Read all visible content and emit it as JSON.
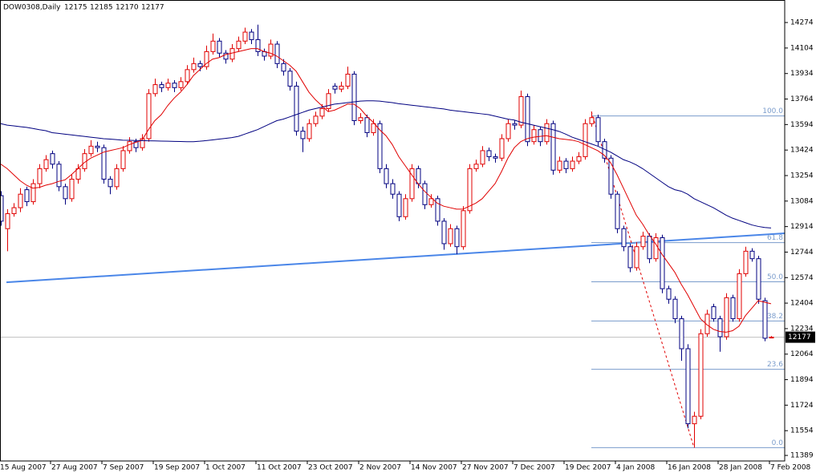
{
  "chart_data": {
    "type": "candlestick",
    "title": "DOW0308,Daily",
    "categories": [
      "15 Aug 2007",
      null,
      null,
      null,
      null,
      null,
      null,
      null,
      "27 Aug 2007",
      null,
      null,
      null,
      null,
      null,
      null,
      null,
      "7 Sep 2007",
      null,
      null,
      null,
      null,
      null,
      null,
      null,
      "19 Sep 2007",
      null,
      null,
      null,
      null,
      null,
      null,
      null,
      "1 Oct 2007",
      null,
      null,
      null,
      null,
      null,
      null,
      null,
      "11 Oct 2007",
      null,
      null,
      null,
      null,
      null,
      null,
      null,
      "23 Oct 2007",
      null,
      null,
      null,
      null,
      null,
      null,
      null,
      "2 Nov 2007",
      null,
      null,
      null,
      null,
      null,
      null,
      null,
      "14 Nov 2007",
      null,
      null,
      null,
      null,
      null,
      null,
      null,
      "27 Nov 2007",
      null,
      null,
      null,
      null,
      null,
      null,
      null,
      "7 Dec 2007",
      null,
      null,
      null,
      null,
      null,
      null,
      null,
      "19 Dec 2007",
      null,
      null,
      null,
      null,
      null,
      null,
      null,
      "4 Jan 2008",
      null,
      null,
      null,
      null,
      null,
      null,
      null,
      "16 Jan 2008",
      null,
      null,
      null,
      null,
      null,
      null,
      null,
      "28 Jan 2008",
      null,
      null,
      null,
      null,
      null,
      null,
      null,
      "7 Feb 2008"
    ],
    "open": [
      13120,
      12900,
      13000,
      13040,
      13160,
      13080,
      13200,
      13300,
      13400,
      13330,
      13180,
      13100,
      13230,
      13300,
      13400,
      13450,
      13440,
      13230,
      13180,
      13300,
      13420,
      13480,
      13440,
      13500,
      13800,
      13860,
      13840,
      13870,
      13840,
      13880,
      13960,
      14000,
      13980,
      14080,
      14150,
      14070,
      14030,
      14100,
      14150,
      14210,
      14160,
      14080,
      14050,
      14130,
      14000,
      13950,
      13850,
      13550,
      13500,
      13600,
      13650,
      13700,
      13850,
      13830,
      13850,
      13930,
      13620,
      13640,
      13540,
      13600,
      13300,
      13200,
      13130,
      12980,
      13100,
      13300,
      13200,
      13060,
      13100,
      12950,
      12800,
      12900,
      12780,
      13020,
      13300,
      13330,
      13420,
      13380,
      13370,
      13500,
      13600,
      13590,
      13780,
      13480,
      13560,
      13480,
      13600,
      13290,
      13350,
      13300,
      13350,
      13380,
      13600,
      13640,
      13480,
      13370,
      13130,
      12900,
      12780,
      12640,
      12780,
      12850,
      12700,
      12840,
      12500,
      12430,
      12300,
      12100,
      11600,
      11650,
      12200,
      12380,
      12300,
      12180,
      12440,
      12300,
      12600,
      12750,
      12700,
      12420,
      12175
    ],
    "high": [
      13150,
      13030,
      13070,
      13170,
      13180,
      13230,
      13330,
      13390,
      13420,
      13350,
      13200,
      13260,
      13330,
      13430,
      13490,
      13480,
      13460,
      13250,
      13330,
      13450,
      13510,
      13500,
      13530,
      13830,
      13900,
      13880,
      13900,
      13890,
      13910,
      13990,
      14040,
      14020,
      14120,
      14200,
      14170,
      14090,
      14130,
      14180,
      14240,
      14230,
      14260,
      14100,
      14160,
      14150,
      14030,
      13970,
      13880,
      13580,
      13630,
      13680,
      13730,
      13830,
      13870,
      13880,
      13980,
      13950,
      13670,
      13660,
      13630,
      13620,
      13330,
      13230,
      13150,
      13130,
      13330,
      13320,
      13220,
      13130,
      13120,
      12970,
      12930,
      12920,
      13050,
      13330,
      13360,
      13450,
      13440,
      13400,
      13530,
      13630,
      13620,
      13820,
      13800,
      13590,
      13580,
      13630,
      13620,
      13380,
      13370,
      13380,
      13410,
      13630,
      13680,
      13660,
      13500,
      13390,
      13150,
      12920,
      12800,
      12810,
      12880,
      12870,
      12870,
      12860,
      12520,
      12450,
      12320,
      12130,
      11680,
      12230,
      12360,
      12400,
      12320,
      12470,
      12460,
      12630,
      12780,
      12770,
      12720,
      12440,
      12185
    ],
    "low": [
      12920,
      12750,
      12980,
      13010,
      13050,
      13060,
      13170,
      13280,
      13300,
      13150,
      13060,
      13080,
      13200,
      13280,
      13380,
      13410,
      13200,
      13130,
      13160,
      13280,
      13400,
      13410,
      13420,
      13480,
      13780,
      13810,
      13820,
      13810,
      13820,
      13860,
      13940,
      13950,
      13960,
      14060,
      14040,
      14000,
      14010,
      14080,
      14130,
      14130,
      14050,
      14020,
      14030,
      13970,
      13920,
      13820,
      13520,
      13410,
      13480,
      13580,
      13630,
      13680,
      13800,
      13810,
      13830,
      13590,
      13600,
      13510,
      13520,
      13270,
      13170,
      13100,
      12950,
      12960,
      13080,
      13170,
      13030,
      13040,
      12920,
      12760,
      12780,
      12730,
      12760,
      13000,
      13280,
      13310,
      13350,
      13340,
      13350,
      13480,
      13560,
      13570,
      13450,
      13460,
      13450,
      13460,
      13260,
      13270,
      13270,
      13280,
      13330,
      13360,
      13580,
      13450,
      13340,
      13100,
      12870,
      12750,
      12610,
      12620,
      12760,
      12670,
      12680,
      12470,
      12400,
      12270,
      12020,
      11570,
      11441,
      11630,
      12180,
      12280,
      12080,
      12160,
      12280,
      12280,
      12580,
      12680,
      12400,
      12150,
      12170
    ],
    "close": [
      12950,
      13000,
      13040,
      13130,
      13080,
      13200,
      13300,
      13360,
      13330,
      13180,
      13100,
      13230,
      13300,
      13400,
      13450,
      13440,
      13230,
      13180,
      13300,
      13420,
      13480,
      13440,
      13500,
      13800,
      13860,
      13840,
      13870,
      13840,
      13880,
      13960,
      14000,
      13980,
      14080,
      14150,
      14070,
      14030,
      14100,
      14150,
      14210,
      14160,
      14080,
      14050,
      14130,
      14000,
      13950,
      13850,
      13550,
      13500,
      13600,
      13650,
      13700,
      13800,
      13830,
      13850,
      13930,
      13620,
      13640,
      13540,
      13600,
      13300,
      13200,
      13130,
      12980,
      13100,
      13300,
      13200,
      13060,
      13100,
      12950,
      12800,
      12900,
      12780,
      13020,
      13300,
      13330,
      13420,
      13380,
      13370,
      13500,
      13600,
      13590,
      13780,
      13480,
      13560,
      13480,
      13600,
      13290,
      13350,
      13300,
      13350,
      13380,
      13600,
      13640,
      13480,
      13370,
      13130,
      12900,
      12780,
      12640,
      12780,
      12850,
      12700,
      12840,
      12500,
      12430,
      12300,
      12100,
      11600,
      11650,
      12200,
      12330,
      12300,
      12180,
      12440,
      12300,
      12600,
      12750,
      12700,
      12430,
      12170,
      12177
    ],
    "bull_color": "#e00000",
    "bear_color": "#000080",
    "moving_averages": [
      {
        "color": "#e00000",
        "values": [
          13330,
          13300,
          13260,
          13220,
          13190,
          13170,
          13175,
          13190,
          13200,
          13215,
          13225,
          13260,
          13300,
          13340,
          13370,
          13390,
          13410,
          13420,
          13430,
          13440,
          13460,
          13475,
          13490,
          13560,
          13620,
          13660,
          13720,
          13770,
          13810,
          13860,
          13920,
          13960,
          14000,
          14030,
          14040,
          14060,
          14070,
          14080,
          14090,
          14100,
          14100,
          14080,
          14070,
          14050,
          14020,
          13990,
          13950,
          13880,
          13810,
          13760,
          13720,
          13680,
          13690,
          13710,
          13730,
          13730,
          13700,
          13650,
          13610,
          13560,
          13520,
          13460,
          13380,
          13320,
          13260,
          13200,
          13150,
          13110,
          13070,
          13050,
          13040,
          13030,
          13030,
          13050,
          13070,
          13100,
          13150,
          13200,
          13280,
          13370,
          13440,
          13480,
          13500,
          13510,
          13515,
          13520,
          13510,
          13500,
          13495,
          13490,
          13480,
          13460,
          13440,
          13420,
          13390,
          13340,
          13260,
          13170,
          13080,
          12990,
          12930,
          12860,
          12800,
          12730,
          12670,
          12610,
          12530,
          12460,
          12380,
          12300,
          12260,
          12230,
          12215,
          12210,
          12220,
          12250,
          12320,
          12370,
          12420,
          12410,
          12400
        ]
      },
      {
        "color": "#000080",
        "values": [
          13600,
          13590,
          13585,
          13580,
          13575,
          13568,
          13560,
          13553,
          13540,
          13535,
          13530,
          13525,
          13520,
          13515,
          13510,
          13505,
          13500,
          13497,
          13494,
          13490,
          13489,
          13488,
          13487,
          13486,
          13485,
          13484,
          13483,
          13482,
          13481,
          13480,
          13480,
          13483,
          13487,
          13492,
          13497,
          13502,
          13507,
          13515,
          13530,
          13545,
          13560,
          13580,
          13600,
          13620,
          13630,
          13645,
          13660,
          13675,
          13690,
          13700,
          13710,
          13720,
          13730,
          13735,
          13740,
          13745,
          13750,
          13752,
          13752,
          13750,
          13745,
          13740,
          13733,
          13728,
          13723,
          13718,
          13713,
          13708,
          13703,
          13698,
          13690,
          13685,
          13680,
          13675,
          13670,
          13665,
          13660,
          13650,
          13640,
          13630,
          13624,
          13610,
          13600,
          13590,
          13580,
          13570,
          13560,
          13548,
          13530,
          13510,
          13495,
          13480,
          13465,
          13450,
          13430,
          13410,
          13385,
          13360,
          13345,
          13325,
          13300,
          13270,
          13240,
          13210,
          13180,
          13160,
          13150,
          13130,
          13100,
          13080,
          13060,
          13040,
          13015,
          12990,
          12970,
          12955,
          12940,
          12925,
          12915,
          12908,
          12905
        ]
      }
    ],
    "trendline": {
      "color": "#4a86e8",
      "values": [
        12543,
        12869
      ]
    },
    "fibonacci": {
      "color": "#7a9ccc",
      "levels": [
        {
          "label": "100.0",
          "value": 13651
        },
        {
          "label": "61.8",
          "value": 12807
        },
        {
          "label": "50.0",
          "value": 12546
        },
        {
          "label": "38.2",
          "value": 12285
        },
        {
          "label": "23.6",
          "value": 11963
        },
        {
          "label": "0.0",
          "value": 11441
        }
      ]
    },
    "ylim": [
      11352,
      14424
    ],
    "yticks": [
      14274,
      14104,
      13934,
      13764,
      13594,
      13424,
      13254,
      13084,
      12914,
      12744,
      12574,
      12404,
      12234,
      12064,
      11894,
      11724,
      11554,
      11389
    ]
  }
}
